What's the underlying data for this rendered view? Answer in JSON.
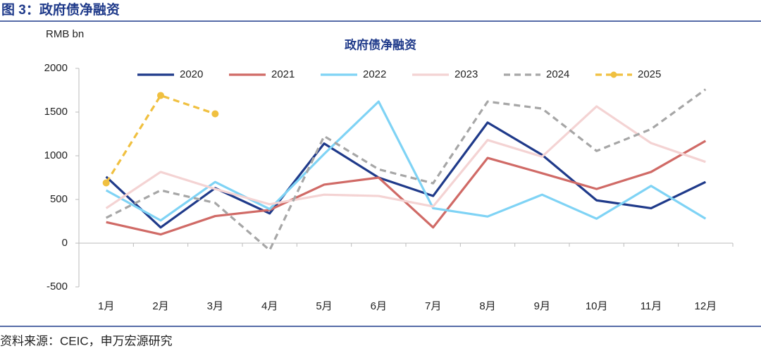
{
  "chart_data": {
    "type": "line",
    "figure_caption": "图 3：政府债净融资",
    "title": "政府债净融资",
    "y_label": "RMB bn",
    "source": "资料来源：CEIC，申万宏源研究",
    "categories": [
      "1月",
      "2月",
      "3月",
      "4月",
      "5月",
      "6月",
      "7月",
      "8月",
      "9月",
      "10月",
      "11月",
      "12月"
    ],
    "ylim": [
      -500,
      2000
    ],
    "yticks": [
      -500,
      0,
      500,
      1000,
      1500,
      2000
    ],
    "grid": false,
    "legend": "top",
    "series": [
      {
        "name": "2020",
        "color": "#1f3a8a",
        "dashed": false,
        "marker": false,
        "values": [
          760,
          180,
          630,
          340,
          1140,
          750,
          540,
          1380,
          1010,
          490,
          400,
          700
        ]
      },
      {
        "name": "2021",
        "color": "#d06a66",
        "dashed": false,
        "marker": false,
        "values": [
          240,
          100,
          310,
          380,
          670,
          750,
          180,
          975,
          800,
          620,
          815,
          1170
        ]
      },
      {
        "name": "2022",
        "color": "#7fd3f5",
        "dashed": false,
        "marker": false,
        "values": [
          605,
          260,
          700,
          390,
          1020,
          1620,
          400,
          305,
          555,
          280,
          655,
          280
        ]
      },
      {
        "name": "2023",
        "color": "#f4d3d3",
        "dashed": false,
        "marker": false,
        "values": [
          400,
          815,
          620,
          445,
          555,
          540,
          420,
          1180,
          990,
          1565,
          1145,
          930
        ]
      },
      {
        "name": "2024",
        "color": "#a6a6a6",
        "dashed": true,
        "marker": false,
        "values": [
          290,
          605,
          460,
          -80,
          1225,
          845,
          685,
          1620,
          1540,
          1055,
          1305,
          1760
        ]
      },
      {
        "name": "2025",
        "color": "#f0c040",
        "dashed": true,
        "marker": true,
        "values": [
          690,
          1690,
          1480,
          null,
          null,
          null,
          null,
          null,
          null,
          null,
          null,
          null
        ]
      }
    ]
  }
}
